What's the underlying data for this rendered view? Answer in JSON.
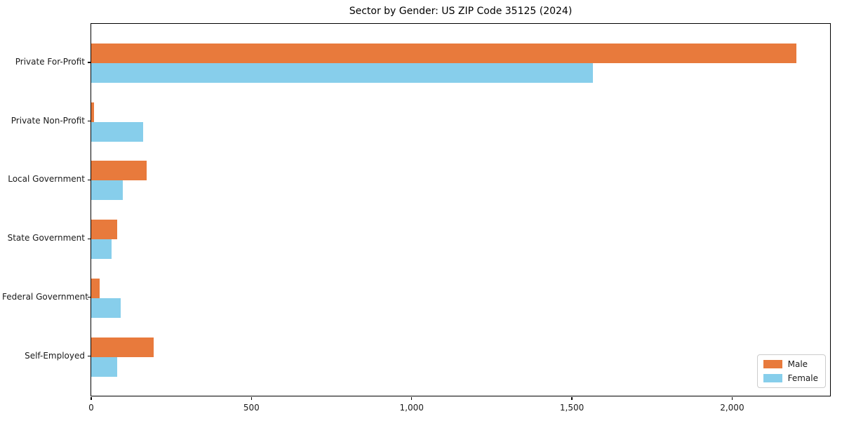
{
  "title": "Sector by Gender: US ZIP Code 35125 (2024)",
  "chart_data": {
    "type": "bar",
    "orientation": "horizontal",
    "title": "Sector by Gender: US ZIP Code 35125 (2024)",
    "categories": [
      "Private For-Profit",
      "Private Non-Profit",
      "Local Government",
      "State Government",
      "Federal Government",
      "Self-Employed"
    ],
    "series": [
      {
        "name": "Male",
        "color": "#E87A3C",
        "values": [
          2200,
          9,
          174,
          82,
          27,
          194
        ]
      },
      {
        "name": "Female",
        "color": "#87CEEB",
        "values": [
          1565,
          162,
          98,
          63,
          92,
          82
        ]
      }
    ],
    "xlabel": "",
    "ylabel": "",
    "xlim": [
      0,
      2310
    ],
    "xticks": {
      "values": [
        0,
        500,
        1000,
        1500,
        2000
      ],
      "labels": [
        "0",
        "500",
        "1,000",
        "1,500",
        "2,000"
      ]
    },
    "grid": false,
    "legend": {
      "position": "lower right",
      "entries": [
        "Male",
        "Female"
      ]
    }
  },
  "colors": {
    "male": "#E87A3C",
    "female": "#87CEEB",
    "spine": "#000000",
    "text": "#1a1a1a",
    "legend_border": "#cccccc",
    "background": "#ffffff"
  }
}
